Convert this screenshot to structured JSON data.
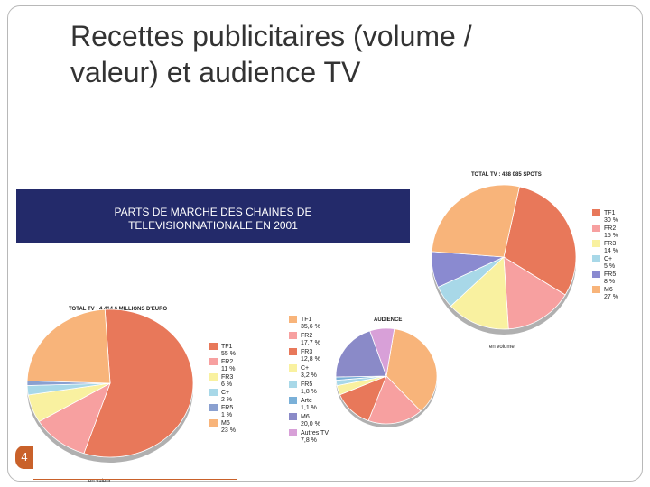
{
  "slide": {
    "title_line1": "Recettes publicitaires (volume /",
    "title_line2": "valeur) et audience TV",
    "banner_line1": "PARTS DE MARCHE DES CHAINES DE",
    "banner_line2": "TELEVISIONNATIONALE EN 2001",
    "page_number": "4"
  },
  "chart_data": [
    {
      "type": "pie",
      "title": "TOTAL TV : 4 414,6 MILLIONS D'EURO",
      "caption": "en valeur",
      "slices": [
        {
          "name": "TF1",
          "value": 55,
          "label": "55 %",
          "color": "#e8785a"
        },
        {
          "name": "FR2",
          "value": 11,
          "label": "11 %",
          "color": "#f7a0a0"
        },
        {
          "name": "FR3",
          "value": 6,
          "label": "6 %",
          "color": "#f9f1a0"
        },
        {
          "name": "C+",
          "value": 2,
          "label": "2 %",
          "color": "#a8d8e8"
        },
        {
          "name": "FR5",
          "value": 1,
          "label": "1 %",
          "color": "#8aa0d0"
        },
        {
          "name": "M6",
          "value": 23,
          "label": "23 %",
          "color": "#f8b47a"
        }
      ]
    },
    {
      "type": "pie",
      "title": "TOTAL TV : 438 085 SPOTS",
      "caption": "en volume",
      "slices": [
        {
          "name": "TF1",
          "value": 30,
          "label": "30 %",
          "color": "#e8785a"
        },
        {
          "name": "FR2",
          "value": 15,
          "label": "15 %",
          "color": "#f7a0a0"
        },
        {
          "name": "FR3",
          "value": 14,
          "label": "14 %",
          "color": "#f9f1a0"
        },
        {
          "name": "C+",
          "value": 5,
          "label": "5 %",
          "color": "#a8d8e8"
        },
        {
          "name": "FR5",
          "value": 8,
          "label": "8 %",
          "color": "#8a8ad0"
        },
        {
          "name": "M6",
          "value": 27,
          "label": "27 %",
          "color": "#f8b47a"
        }
      ]
    },
    {
      "type": "pie",
      "title": "AUDIENCE",
      "caption": "",
      "slices": [
        {
          "name": "TF1",
          "value": 35.6,
          "label": "35,6 %",
          "color": "#f8b47a"
        },
        {
          "name": "FR2",
          "value": 17.7,
          "label": "17,7 %",
          "color": "#f7a0a0"
        },
        {
          "name": "FR3",
          "value": 12.8,
          "label": "12,8 %",
          "color": "#e8785a"
        },
        {
          "name": "C+",
          "value": 3.2,
          "label": "3,2 %",
          "color": "#f9f1a0"
        },
        {
          "name": "FR5",
          "value": 1.8,
          "label": "1,8 %",
          "color": "#a8d8e8"
        },
        {
          "name": "Arte",
          "value": 1.1,
          "label": "1,1 %",
          "color": "#7ab0d8"
        },
        {
          "name": "M6",
          "value": 20.0,
          "label": "20,0 %",
          "color": "#8a8ac8"
        },
        {
          "name": "Autres TV",
          "value": 7.8,
          "label": "7,8 %",
          "color": "#d8a0d8"
        }
      ]
    }
  ]
}
